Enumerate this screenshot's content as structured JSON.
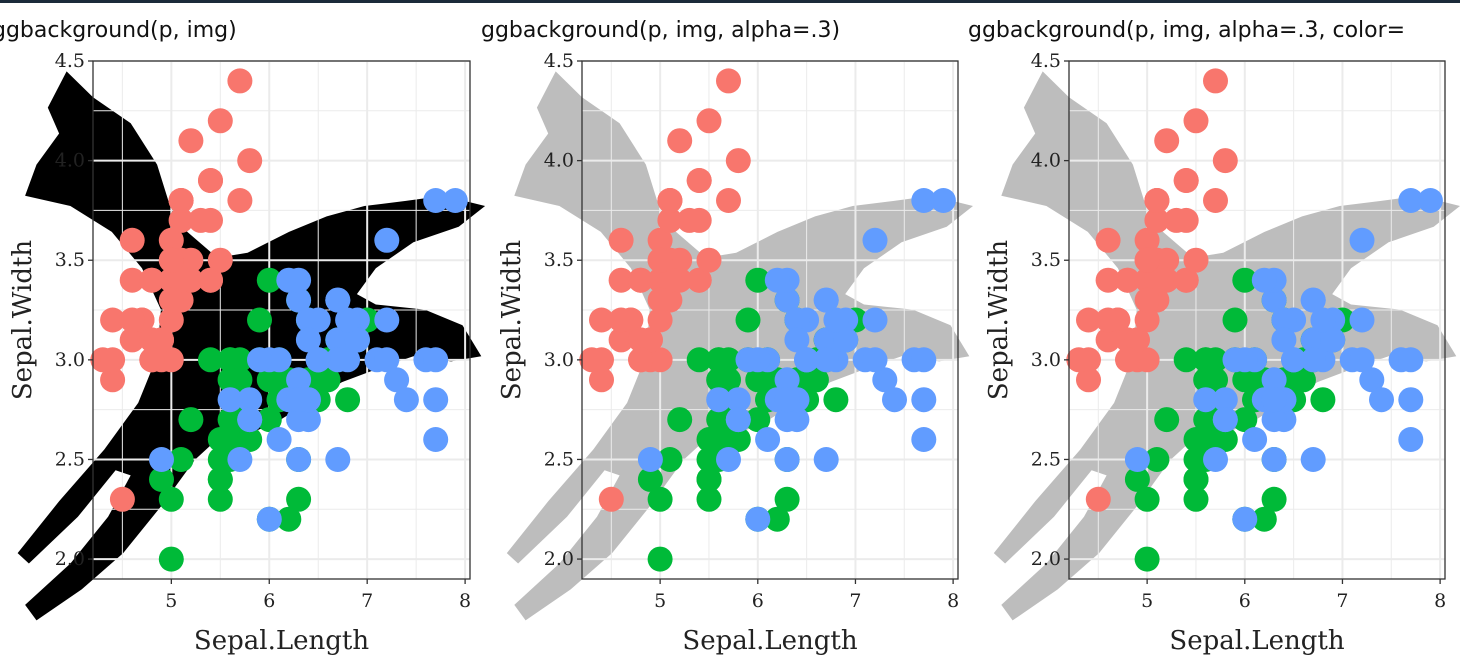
{
  "chart_data": [
    {
      "type": "scatter",
      "title": "ggbackground(p, img)",
      "xlabel": "Sepal.Length",
      "ylabel": "Sepal.Width",
      "xlim": [
        4.2,
        8.05
      ],
      "ylim": [
        1.9,
        4.5
      ],
      "xticks": [
        "5",
        "6",
        "7",
        "8"
      ],
      "yticks": [
        "2.0",
        "2.5",
        "3.0",
        "3.5",
        "4.0",
        "4.5"
      ],
      "background_image": "bird-silhouette",
      "background_color": "#000000",
      "grid": true,
      "legend": "none"
    },
    {
      "type": "scatter",
      "title": "ggbackground(p, img, alpha=.3)",
      "xlabel": "Sepal.Length",
      "ylabel": "Sepal.Width",
      "xlim": [
        4.2,
        8.05
      ],
      "ylim": [
        1.9,
        4.5
      ],
      "xticks": [
        "5",
        "6",
        "7",
        "8"
      ],
      "yticks": [
        "2.0",
        "2.5",
        "3.0",
        "3.5",
        "4.0",
        "4.5"
      ],
      "background_image": "bird-silhouette",
      "background_color": "#bdbdbd",
      "grid": true,
      "legend": "none"
    },
    {
      "type": "scatter",
      "title": "ggbackground(p, img, alpha=.3, color=",
      "xlabel": "Sepal.Length",
      "ylabel": "Sepal.Width",
      "xlim": [
        4.2,
        8.05
      ],
      "ylim": [
        1.9,
        4.5
      ],
      "xticks": [
        "5",
        "6",
        "7",
        "8"
      ],
      "yticks": [
        "2.0",
        "2.5",
        "3.0",
        "3.5",
        "4.0",
        "4.5"
      ],
      "background_image": "bird-silhouette",
      "background_color": "#bdbdbd",
      "grid": true,
      "legend": "none"
    }
  ],
  "shared_series": [
    {
      "color": "#F8766D",
      "points": [
        [
          5.1,
          3.5
        ],
        [
          4.9,
          3.0
        ],
        [
          4.7,
          3.2
        ],
        [
          4.6,
          3.1
        ],
        [
          5.0,
          3.6
        ],
        [
          5.4,
          3.9
        ],
        [
          4.6,
          3.4
        ],
        [
          5.0,
          3.4
        ],
        [
          4.4,
          2.9
        ],
        [
          4.9,
          3.1
        ],
        [
          5.4,
          3.7
        ],
        [
          4.8,
          3.4
        ],
        [
          4.8,
          3.0
        ],
        [
          4.3,
          3.0
        ],
        [
          5.8,
          4.0
        ],
        [
          5.7,
          4.4
        ],
        [
          5.4,
          3.9
        ],
        [
          5.1,
          3.5
        ],
        [
          5.7,
          3.8
        ],
        [
          5.1,
          3.8
        ],
        [
          5.4,
          3.4
        ],
        [
          5.1,
          3.7
        ],
        [
          4.6,
          3.6
        ],
        [
          5.1,
          3.3
        ],
        [
          4.8,
          3.4
        ],
        [
          5.0,
          3.0
        ],
        [
          5.0,
          3.4
        ],
        [
          5.2,
          3.5
        ],
        [
          5.2,
          3.4
        ],
        [
          4.7,
          3.2
        ],
        [
          4.8,
          3.1
        ],
        [
          5.4,
          3.4
        ],
        [
          5.2,
          4.1
        ],
        [
          5.5,
          4.2
        ],
        [
          4.9,
          3.1
        ],
        [
          5.0,
          3.2
        ],
        [
          5.5,
          3.5
        ],
        [
          4.4,
          3.0
        ],
        [
          5.1,
          3.4
        ],
        [
          5.0,
          3.5
        ],
        [
          4.5,
          2.3
        ],
        [
          4.4,
          3.2
        ],
        [
          5.0,
          3.5
        ],
        [
          5.1,
          3.8
        ],
        [
          4.8,
          3.0
        ],
        [
          5.1,
          3.8
        ],
        [
          4.6,
          3.2
        ],
        [
          5.3,
          3.7
        ],
        [
          5.0,
          3.3
        ]
      ]
    },
    {
      "color": "#00BA38",
      "points": [
        [
          7.0,
          3.2
        ],
        [
          6.4,
          3.2
        ],
        [
          6.9,
          3.1
        ],
        [
          5.5,
          2.3
        ],
        [
          6.5,
          2.8
        ],
        [
          5.7,
          2.8
        ],
        [
          6.3,
          3.3
        ],
        [
          4.9,
          2.4
        ],
        [
          6.6,
          2.9
        ],
        [
          5.2,
          2.7
        ],
        [
          5.0,
          2.0
        ],
        [
          5.9,
          3.0
        ],
        [
          6.0,
          2.2
        ],
        [
          6.1,
          2.9
        ],
        [
          5.6,
          2.9
        ],
        [
          6.7,
          3.1
        ],
        [
          5.6,
          3.0
        ],
        [
          5.8,
          2.7
        ],
        [
          6.2,
          2.2
        ],
        [
          5.6,
          2.5
        ],
        [
          5.9,
          3.2
        ],
        [
          6.1,
          2.8
        ],
        [
          6.3,
          2.5
        ],
        [
          6.1,
          2.8
        ],
        [
          6.4,
          2.9
        ],
        [
          6.6,
          3.0
        ],
        [
          6.8,
          2.8
        ],
        [
          6.7,
          3.0
        ],
        [
          6.0,
          2.9
        ],
        [
          5.7,
          2.6
        ],
        [
          5.5,
          2.4
        ],
        [
          5.5,
          2.4
        ],
        [
          5.8,
          2.7
        ],
        [
          6.0,
          2.7
        ],
        [
          5.4,
          3.0
        ],
        [
          6.0,
          3.4
        ],
        [
          6.7,
          3.1
        ],
        [
          6.3,
          2.3
        ],
        [
          5.6,
          3.0
        ],
        [
          5.5,
          2.5
        ],
        [
          5.5,
          2.6
        ],
        [
          6.1,
          3.0
        ],
        [
          5.8,
          2.6
        ],
        [
          5.0,
          2.3
        ],
        [
          5.6,
          2.7
        ],
        [
          5.7,
          3.0
        ],
        [
          5.7,
          2.9
        ],
        [
          6.2,
          2.9
        ],
        [
          5.1,
          2.5
        ],
        [
          5.7,
          2.8
        ]
      ]
    },
    {
      "color": "#619CFF",
      "points": [
        [
          6.3,
          3.3
        ],
        [
          5.8,
          2.7
        ],
        [
          7.1,
          3.0
        ],
        [
          6.3,
          2.9
        ],
        [
          6.5,
          3.0
        ],
        [
          7.6,
          3.0
        ],
        [
          4.9,
          2.5
        ],
        [
          7.3,
          2.9
        ],
        [
          6.7,
          2.5
        ],
        [
          7.2,
          3.6
        ],
        [
          6.5,
          3.2
        ],
        [
          6.4,
          2.7
        ],
        [
          6.8,
          3.0
        ],
        [
          5.7,
          2.5
        ],
        [
          5.8,
          2.8
        ],
        [
          6.4,
          3.2
        ],
        [
          6.5,
          3.0
        ],
        [
          7.7,
          3.8
        ],
        [
          7.7,
          2.6
        ],
        [
          6.0,
          2.2
        ],
        [
          6.9,
          3.2
        ],
        [
          5.6,
          2.8
        ],
        [
          7.7,
          2.8
        ],
        [
          6.3,
          2.7
        ],
        [
          6.7,
          3.3
        ],
        [
          7.2,
          3.2
        ],
        [
          6.2,
          2.8
        ],
        [
          6.1,
          3.0
        ],
        [
          6.4,
          2.8
        ],
        [
          7.2,
          3.0
        ],
        [
          7.4,
          2.8
        ],
        [
          7.9,
          3.8
        ],
        [
          6.4,
          2.8
        ],
        [
          6.3,
          2.8
        ],
        [
          6.1,
          2.6
        ],
        [
          7.7,
          3.0
        ],
        [
          6.3,
          3.4
        ],
        [
          6.4,
          3.1
        ],
        [
          6.0,
          3.0
        ],
        [
          6.9,
          3.1
        ],
        [
          6.7,
          3.1
        ],
        [
          6.9,
          3.1
        ],
        [
          5.8,
          2.7
        ],
        [
          6.8,
          3.2
        ],
        [
          6.7,
          3.3
        ],
        [
          6.7,
          3.0
        ],
        [
          6.3,
          2.5
        ],
        [
          6.5,
          3.0
        ],
        [
          6.2,
          3.4
        ],
        [
          5.9,
          3.0
        ]
      ]
    }
  ]
}
